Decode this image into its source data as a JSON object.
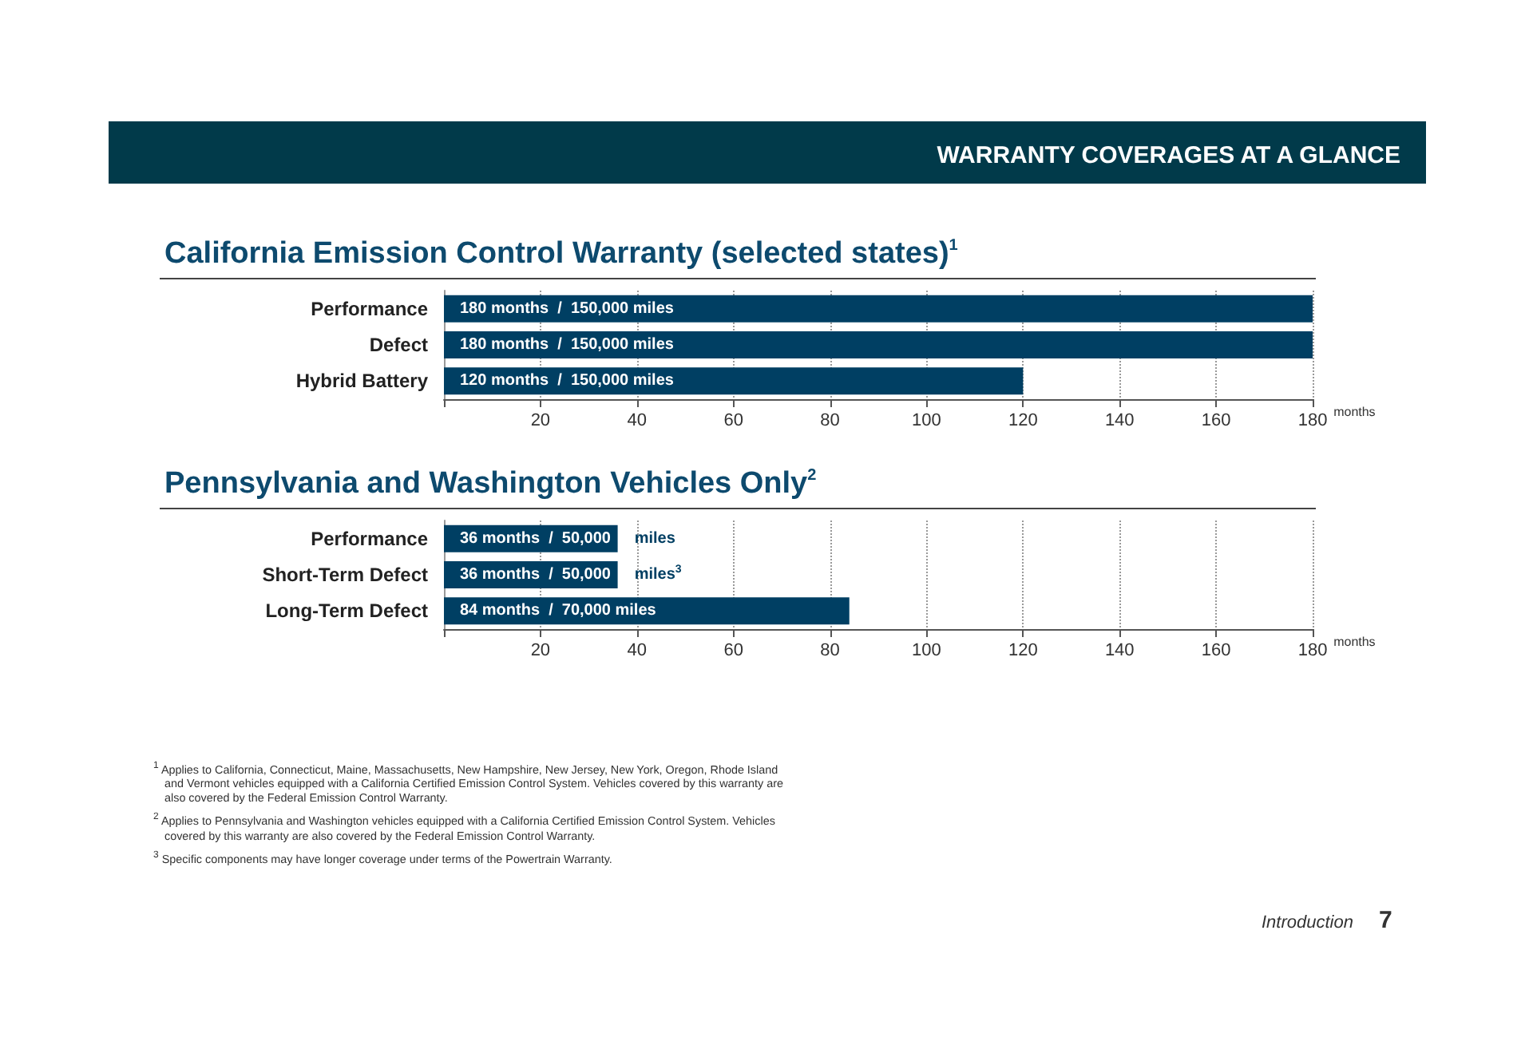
{
  "chart_data": [
    {
      "type": "bar",
      "orientation": "horizontal",
      "title": "California Emission Control Warranty (selected states)$^{1}$",
      "annotations": [
        "WARRANTY COVERAGES AT A GLANCE"
      ],
      "categories": [
        "Performance",
        "Defect",
        "Hybrid Battery"
      ],
      "values": [
        180,
        180,
        120
      ],
      "color": "#003f63",
      "value_labels": [
        "180 months  /  150,000 miles",
        "180 months  /  150,000 miles",
        "120 months  /  150,000 miles"
      ],
      "xlabel": "months",
      "xlim": [
        0,
        180
      ],
      "xticks": [
        {
          "value": 0,
          "label": null
        },
        20,
        40,
        60,
        80,
        100,
        120,
        140,
        160,
        180
      ],
      "grid": "x"
    },
    {
      "type": "bar",
      "orientation": "horizontal",
      "title": "Pennsylvania and Washington Vehicles Only$^{2}$",
      "annotations": [
        "$^{1}$ Applies to California, Connecticut, Maine, Massachusetts, New Hampshire, New Jersey, New York, Oregon, Rhode Island and Vermont vehicles equipped with a California Certified Emission Control System. Vehicles covered by this warranty are also covered by the Federal Emission Control Warranty.",
        "$^{2}$ Applies to Pennsylvania and Washington vehicles equipped with a California Certified Emission Control System. Vehicles covered by this warranty are also covered by the Federal Emission Control Warranty.",
        "$^{3}$ Specific components may have longer coverage under terms of the Powertrain Warranty.",
        "Introduction  7"
      ],
      "categories": [
        "Performance",
        "Short-Term Defect",
        "Long-Term Defect"
      ],
      "values": [
        36,
        36,
        84
      ],
      "color": "#003f63",
      "value_labels": [
        "36 months  /  50,000  miles",
        "36 months  /  50,000  miles$^{3}$",
        "84 months  /  70,000 miles"
      ],
      "xlabel": "months",
      "xlim": [
        0,
        180
      ],
      "xticks": [
        {
          "value": 0,
          "label": null
        },
        20,
        40,
        60,
        80,
        100,
        120,
        140,
        160,
        180
      ],
      "grid": "x"
    }
  ]
}
